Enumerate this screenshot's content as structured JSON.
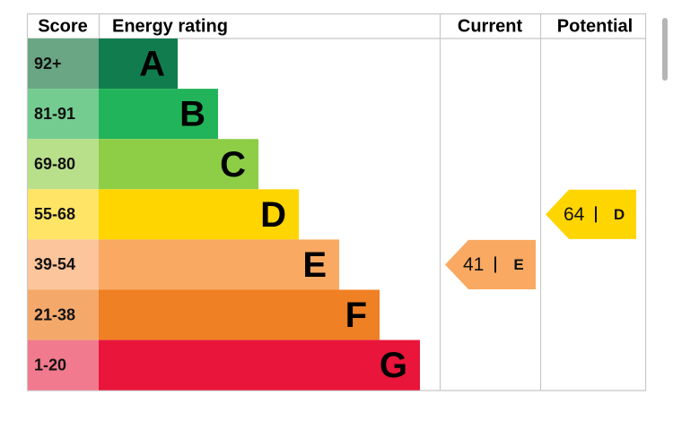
{
  "header": {
    "score": "Score",
    "rating": "Energy rating",
    "current": "Current",
    "potential": "Potential"
  },
  "bands": [
    {
      "score": "92+",
      "letter": "A",
      "color": "#117d4f",
      "score_color": "#6aa684"
    },
    {
      "score": "81-91",
      "letter": "B",
      "color": "#22b45a",
      "score_color": "#74cc90"
    },
    {
      "score": "69-80",
      "letter": "C",
      "color": "#8dce46",
      "score_color": "#b8e08b"
    },
    {
      "score": "55-68",
      "letter": "D",
      "color": "#ffd500",
      "score_color": "#ffe466"
    },
    {
      "score": "39-54",
      "letter": "E",
      "color": "#f9a962",
      "score_color": "#fcc59b"
    },
    {
      "score": "21-38",
      "letter": "F",
      "color": "#ef8023",
      "score_color": "#f4a96b"
    },
    {
      "score": "1-20",
      "letter": "G",
      "color": "#e9153b",
      "score_color": "#f27a8e"
    }
  ],
  "current": {
    "value": 41,
    "letter": "E"
  },
  "potential": {
    "value": 64,
    "letter": "D"
  }
}
